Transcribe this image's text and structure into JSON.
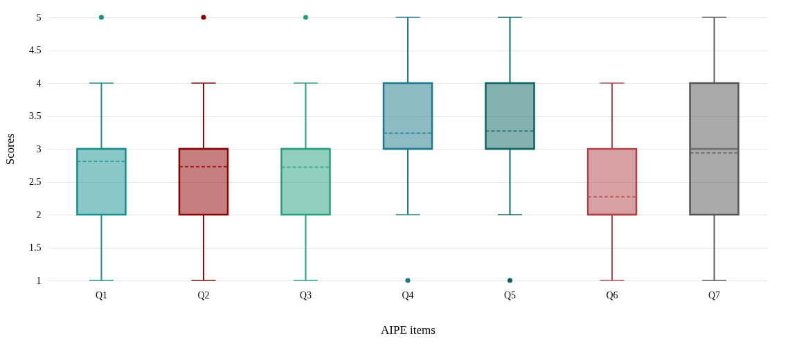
{
  "chart_data": {
    "type": "box",
    "xlabel": "AIPE items",
    "ylabel": "Scores",
    "categories": [
      "Q1",
      "Q2",
      "Q3",
      "Q4",
      "Q5",
      "Q6",
      "Q7"
    ],
    "colors": [
      "#15908f",
      "#8b0000",
      "#24a07b",
      "#1d7a8a",
      "#0c6463",
      "#b04349",
      "#555555"
    ],
    "boxes": [
      {
        "low": 1,
        "q1": 2,
        "median": 3,
        "q3": 3,
        "high": 4,
        "mean": 2.81,
        "outliers": [
          5
        ]
      },
      {
        "low": 1,
        "q1": 2,
        "median": 3,
        "q3": 3,
        "high": 4,
        "mean": 2.73,
        "outliers": [
          5
        ]
      },
      {
        "low": 1,
        "q1": 2,
        "median": 3,
        "q3": 3,
        "high": 4,
        "mean": 2.72,
        "outliers": [
          5
        ]
      },
      {
        "low": 2,
        "q1": 3,
        "median": 3,
        "q3": 4,
        "high": 5,
        "mean": 3.24,
        "outliers": [
          1
        ]
      },
      {
        "low": 2,
        "q1": 3,
        "median": 3,
        "q3": 4,
        "high": 5,
        "mean": 3.27,
        "outliers": [
          1
        ]
      },
      {
        "low": 1,
        "q1": 2,
        "median": 2,
        "q3": 3,
        "high": 4,
        "mean": 2.27
      },
      {
        "low": 1,
        "q1": 2,
        "median": 3,
        "q3": 4,
        "high": 5,
        "mean": 2.94
      }
    ],
    "ylim": [
      1,
      5
    ],
    "yticks": [
      1,
      1.5,
      2,
      2.5,
      3,
      3.5,
      4,
      4.5,
      5
    ],
    "grid": "y"
  }
}
